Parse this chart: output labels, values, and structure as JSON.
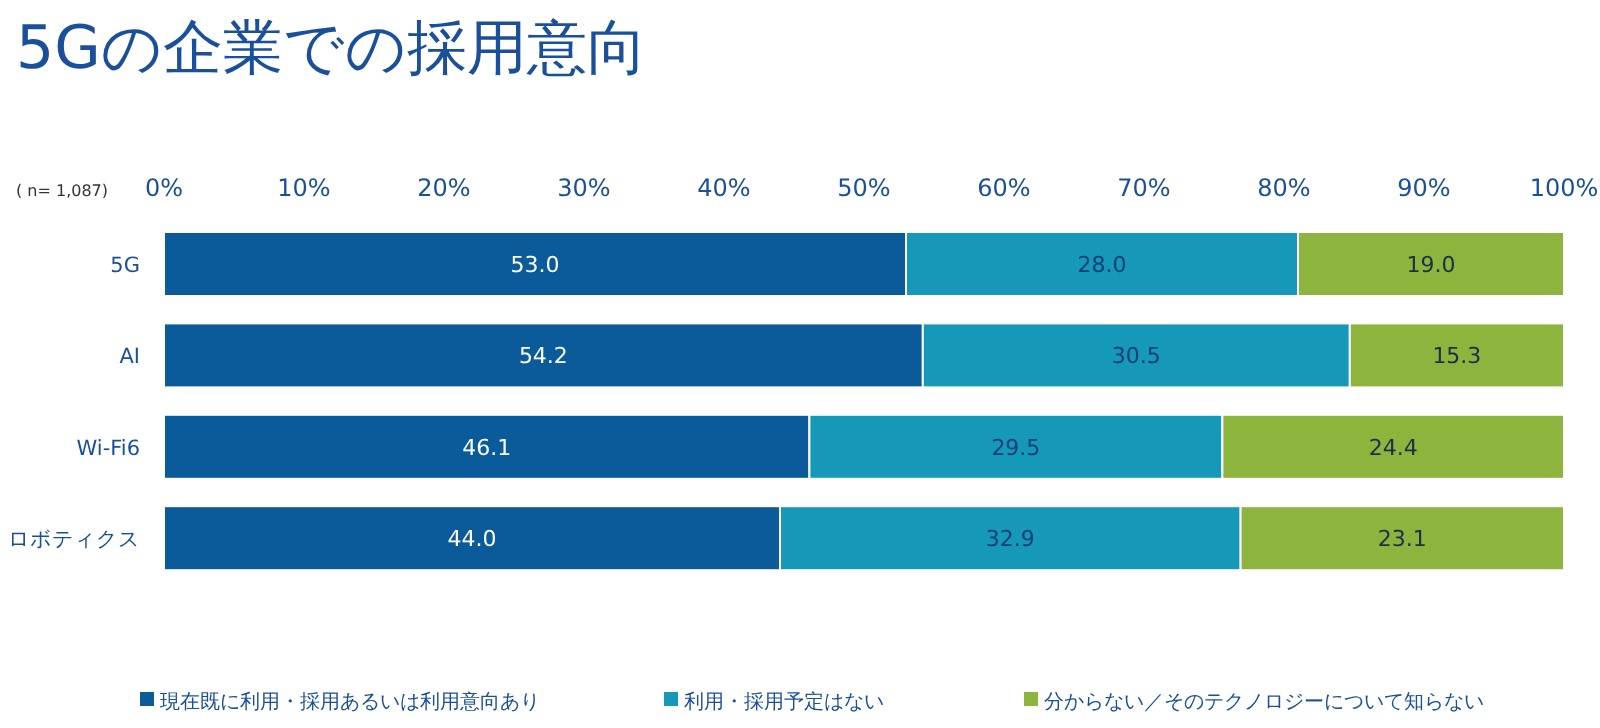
{
  "chart_data": {
    "type": "bar",
    "orientation": "horizontal",
    "stacked": true,
    "legend": "bottom",
    "title": "5Gの企業での採用意向",
    "annotations": [
      "( n= 1,087)"
    ],
    "categories": [
      "5G",
      "AI",
      "Wi-Fi6",
      "ロボティクス"
    ],
    "xlim": [
      0,
      100
    ],
    "xticks": [
      {
        "value": 0,
        "label": "0%"
      },
      {
        "value": 10,
        "label": "10%"
      },
      {
        "value": 20,
        "label": "20%"
      },
      {
        "value": 30,
        "label": "30%"
      },
      {
        "value": 40,
        "label": "40%"
      },
      {
        "value": 50,
        "label": "50%"
      },
      {
        "value": 60,
        "label": "60%"
      },
      {
        "value": 70,
        "label": "70%"
      },
      {
        "value": 80,
        "label": "80%"
      },
      {
        "value": 90,
        "label": "90%"
      },
      {
        "value": 100,
        "label": "100%"
      }
    ],
    "series": [
      {
        "name": "現在既に利用・採用あるいは利用意向あり",
        "color": "#0b5a9a",
        "values": [
          53.0,
          54.2,
          46.1,
          44.0
        ],
        "value_labels": [
          "53.0",
          "54.2",
          "46.1",
          "44.0"
        ]
      },
      {
        "name": "利用・採用予定はない",
        "color": "#1699b9",
        "values": [
          28.0,
          30.5,
          29.5,
          32.9
        ],
        "value_labels": [
          "28.0",
          "30.5",
          "29.5",
          "32.9"
        ]
      },
      {
        "name": "分からない／そのテクノロジーについて知らない",
        "color": "#8db43c",
        "values": [
          19.0,
          15.3,
          24.4,
          23.1
        ],
        "value_labels": [
          "19.0",
          "15.3",
          "24.4",
          "23.1"
        ]
      }
    ]
  }
}
